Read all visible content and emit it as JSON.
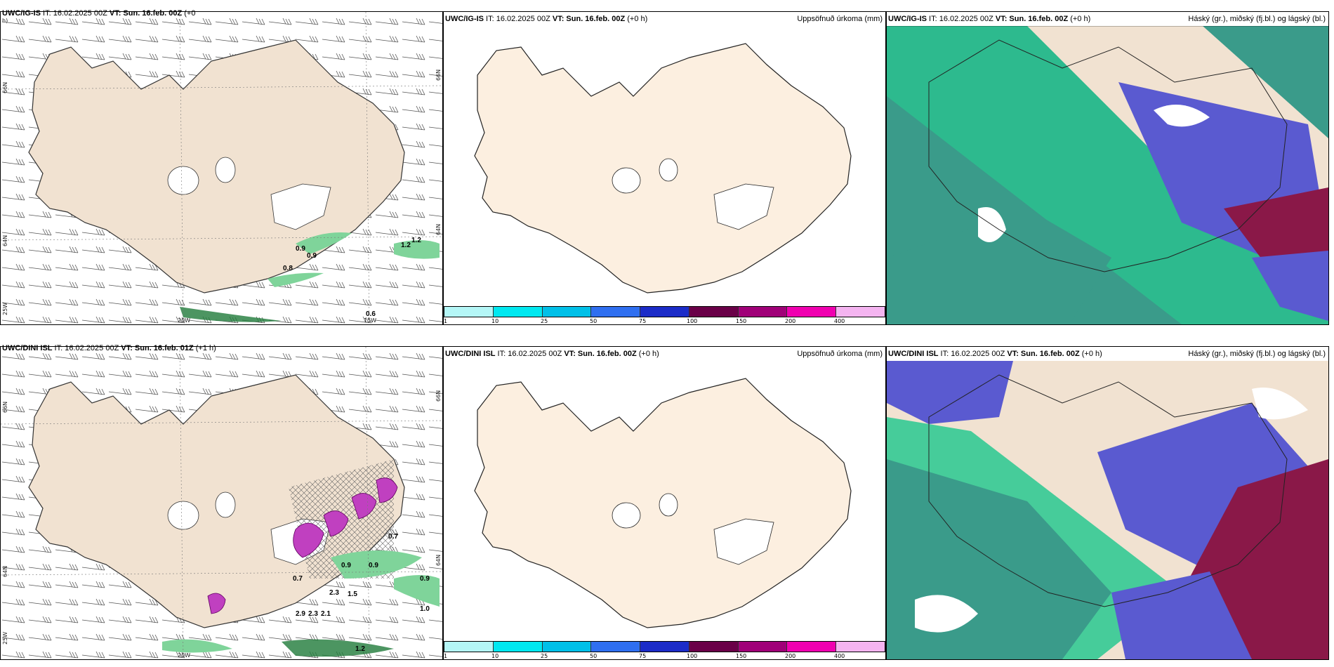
{
  "panels": {
    "top_wind": {
      "model": "UWC/IG-IS",
      "it": " IT: 16.02.2025 00Z ",
      "vt": "VT: Sun. 16.feb. 00Z",
      "lead": " (+0",
      "lead_wrap": "h)",
      "lat_labels": [
        "66N",
        "64N"
      ],
      "lat_labels_right": [
        "66N",
        "64N"
      ],
      "lon_labels": [
        "25W",
        "20W",
        "15W"
      ],
      "values": [
        "0.9",
        "0.9",
        "0.8",
        "1.2",
        "0.6",
        "1.2"
      ]
    },
    "top_precip": {
      "model": "UWC/IG-IS",
      "it": " IT: 16.02.2025 00Z ",
      "vt": "VT: Sun. 16.feb. 00Z",
      "lead": " (+0 h)",
      "right": "Uppsöfnuð úrkoma (mm)"
    },
    "top_cloud": {
      "model": "UWC/IG-IS",
      "it": " IT: 16.02.2025 00Z ",
      "vt": "VT: Sun. 16.feb. 00Z",
      "lead": " (+0 h)",
      "right": "Háský (gr.), miðský (fj.bl.) og lágský (bl.)"
    },
    "bottom_wind": {
      "model": "UWC/DINI ISL",
      "it": " IT: 16.02.2025 00Z ",
      "vt": "VT: Sun. 16.feb. 01Z",
      "lead": " (+1 h)",
      "lat_labels": [
        "66N",
        "64N"
      ],
      "lat_labels_right": [
        "66N",
        "64N"
      ],
      "lon_labels": [
        "25W",
        "20W"
      ],
      "values": [
        "0.7",
        "0.9",
        "0.9",
        "2.3",
        "1.5",
        "1.0",
        "2.9",
        "2.3",
        "2.1",
        "1.2",
        "0.7",
        "0.9"
      ]
    },
    "bottom_precip": {
      "model": "UWC/DINI ISL",
      "it": " IT: 16.02.2025 00Z ",
      "vt": "VT: Sun. 16.feb. 00Z",
      "lead": " (+0 h)",
      "right": "Uppsöfnuð úrkoma (mm)"
    },
    "bottom_cloud": {
      "model": "UWC/DINI ISL",
      "it": " IT: 16.02.2025 00Z ",
      "vt": "VT: Sun. 16.feb. 00Z",
      "lead": " (+0 h)",
      "right": "Háský (gr.), miðský (fj.bl.) og lágský (bl.)"
    }
  },
  "colorbar": {
    "ticks": [
      "1",
      "10",
      "25",
      "50",
      "75",
      "100",
      "150",
      "200",
      "400"
    ],
    "colors": [
      "#b4f6f6",
      "#00e8f0",
      "#00c0e8",
      "#2f6ff0",
      "#1c2cc8",
      "#6a0048",
      "#a00078",
      "#f000b0",
      "#f4b4f0"
    ]
  },
  "colors": {
    "land": "#f1e2d1",
    "land_precip": "#fcefe0",
    "wind_green": "#7fd49a",
    "wind_green_dark": "#1f7a3a",
    "precip_magenta": "#c040c0",
    "cloud_teal": "#3a9b8a",
    "cloud_green": "#28c890",
    "cloud_blue": "#5a5ad0",
    "cloud_maroon": "#8a1848"
  }
}
